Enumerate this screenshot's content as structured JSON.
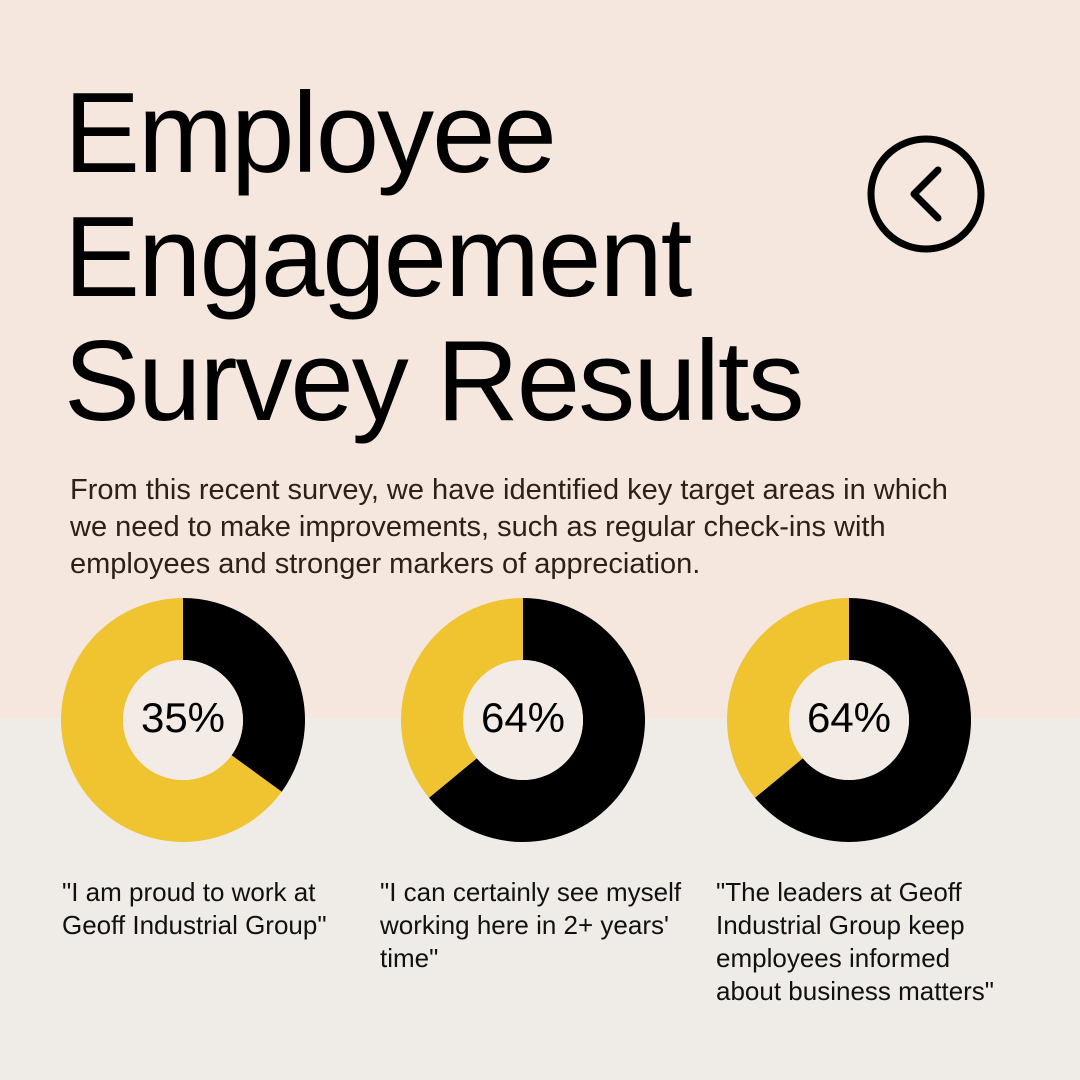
{
  "title_lines": [
    "Employee",
    "Engagement",
    "Survey Results"
  ],
  "intro": "From this recent survey, we have identified key target areas in which we need to make improvements, such as regular check-ins with employees and stronger markers of appreciation.",
  "back_icon": "chevron-left-icon",
  "colors": {
    "background_top": "#f5e6de",
    "background_bottom": "#efebe6",
    "accent": "#f0c430",
    "dark": "#000000",
    "hole": "#f3ebe5"
  },
  "chart_data": [
    {
      "type": "pie",
      "variant": "donut",
      "label": "35%",
      "value": 35,
      "caption": "\"I am proud to work at Geoff Industrial Group\""
    },
    {
      "type": "pie",
      "variant": "donut",
      "label": "64%",
      "value": 64,
      "caption": "\"I can certainly see myself working here in 2+ years' time\""
    },
    {
      "type": "pie",
      "variant": "donut",
      "label": "64%",
      "value": 64,
      "caption": "\"The leaders at Geoff Industrial Group keep employees informed about business matters\""
    }
  ]
}
